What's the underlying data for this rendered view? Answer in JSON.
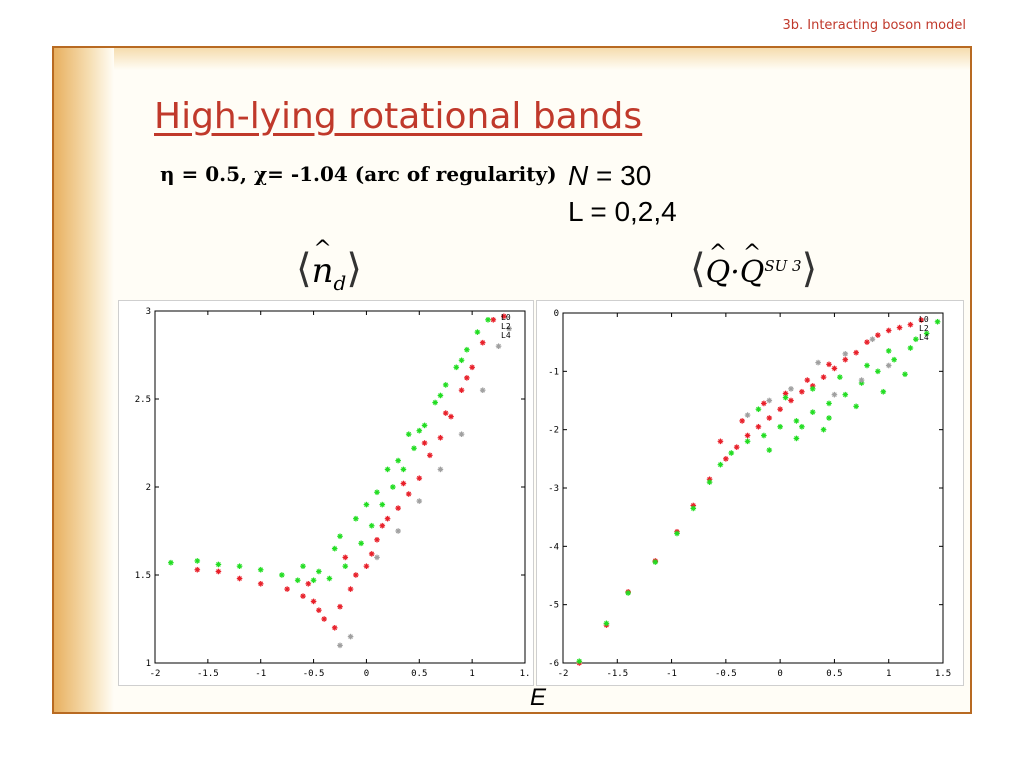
{
  "header": {
    "section": "3b. Interacting boson model"
  },
  "slide": {
    "title": "High-lying rotational bands",
    "params": "η = 0.5, χ= -1.04 (arc of regularity)",
    "n_label": "N",
    "n_value": " = 30",
    "l_line": "L = 0,2,4",
    "left_header": {
      "left_bracket": "⟨",
      "symbol": "n",
      "subscript": "d",
      "right_bracket": "⟩"
    },
    "right_header": {
      "left_bracket": "⟨",
      "symbol1": "Q",
      "dot": "·",
      "symbol2": "Q",
      "superscript": "SU 3",
      "right_bracket": "⟩"
    },
    "xlabel": "E"
  },
  "chart_data": [
    {
      "type": "scatter",
      "name": "nd-vs-E",
      "xlim": [
        -2,
        1.5
      ],
      "ylim": [
        1,
        3
      ],
      "xticks": [
        "-2",
        "-1.5",
        "-1",
        "-0.5",
        "0",
        "0.5",
        "1",
        "1."
      ],
      "yticks": [
        "1",
        "1.5",
        "2",
        "2.5",
        "3"
      ],
      "legend_position": "top-right",
      "legend": [
        "L0",
        "L2",
        "L4"
      ],
      "series_colors": [
        "#e8202a",
        "#22dd22",
        "#a0a0a0"
      ],
      "series": [
        {
          "name": "L0",
          "color": "#e8202a",
          "points": [
            [
              -1.6,
              1.53
            ],
            [
              -1.4,
              1.52
            ],
            [
              -1.2,
              1.48
            ],
            [
              -1.0,
              1.45
            ],
            [
              -0.75,
              1.42
            ],
            [
              -0.6,
              1.38
            ],
            [
              -0.5,
              1.35
            ],
            [
              -0.45,
              1.3
            ],
            [
              -0.4,
              1.25
            ],
            [
              -0.3,
              1.2
            ],
            [
              -0.25,
              1.32
            ],
            [
              -0.15,
              1.42
            ],
            [
              -0.1,
              1.5
            ],
            [
              0.0,
              1.55
            ],
            [
              0.05,
              1.62
            ],
            [
              0.1,
              1.7
            ],
            [
              0.2,
              1.82
            ],
            [
              0.3,
              1.88
            ],
            [
              0.4,
              1.96
            ],
            [
              0.5,
              2.05
            ],
            [
              0.6,
              2.18
            ],
            [
              0.7,
              2.28
            ],
            [
              0.8,
              2.4
            ],
            [
              0.9,
              2.55
            ],
            [
              1.0,
              2.68
            ],
            [
              1.1,
              2.82
            ],
            [
              1.2,
              2.95
            ],
            [
              1.3,
              2.97
            ],
            [
              -0.55,
              1.45
            ],
            [
              -0.2,
              1.6
            ],
            [
              0.15,
              1.78
            ],
            [
              0.35,
              2.02
            ],
            [
              0.55,
              2.25
            ],
            [
              0.75,
              2.42
            ],
            [
              0.95,
              2.62
            ]
          ]
        },
        {
          "name": "L2",
          "color": "#22dd22",
          "points": [
            [
              -1.85,
              1.57
            ],
            [
              -1.6,
              1.58
            ],
            [
              -1.4,
              1.56
            ],
            [
              -1.2,
              1.55
            ],
            [
              -1.0,
              1.53
            ],
            [
              -0.8,
              1.5
            ],
            [
              -0.65,
              1.47
            ],
            [
              -0.5,
              1.47
            ],
            [
              -0.35,
              1.48
            ],
            [
              -0.2,
              1.55
            ],
            [
              -0.05,
              1.68
            ],
            [
              0.05,
              1.78
            ],
            [
              0.15,
              1.9
            ],
            [
              0.25,
              2.0
            ],
            [
              0.35,
              2.1
            ],
            [
              0.45,
              2.22
            ],
            [
              0.55,
              2.35
            ],
            [
              0.65,
              2.48
            ],
            [
              0.75,
              2.58
            ],
            [
              0.85,
              2.68
            ],
            [
              0.95,
              2.78
            ],
            [
              1.05,
              2.88
            ],
            [
              1.15,
              2.95
            ],
            [
              -0.3,
              1.65
            ],
            [
              -0.1,
              1.82
            ],
            [
              0.1,
              1.97
            ],
            [
              0.3,
              2.15
            ],
            [
              0.5,
              2.32
            ],
            [
              0.7,
              2.52
            ],
            [
              0.9,
              2.72
            ],
            [
              -0.6,
              1.55
            ],
            [
              -0.45,
              1.52
            ],
            [
              -0.25,
              1.72
            ],
            [
              0.0,
              1.9
            ],
            [
              0.2,
              2.1
            ],
            [
              0.4,
              2.3
            ]
          ]
        },
        {
          "name": "L4",
          "color": "#a0a0a0",
          "points": [
            [
              -0.25,
              1.1
            ],
            [
              -0.15,
              1.15
            ],
            [
              0.1,
              1.6
            ],
            [
              0.3,
              1.75
            ],
            [
              0.5,
              1.92
            ],
            [
              0.7,
              2.1
            ],
            [
              0.9,
              2.3
            ],
            [
              1.1,
              2.55
            ],
            [
              1.25,
              2.8
            ],
            [
              1.35,
              2.9
            ]
          ]
        }
      ]
    },
    {
      "type": "scatter",
      "name": "QQ-vs-E",
      "xlim": [
        -2,
        1.5
      ],
      "ylim": [
        -6,
        0
      ],
      "xticks": [
        "-2",
        "-1.5",
        "-1",
        "-0.5",
        "0",
        "0.5",
        "1",
        "1.5"
      ],
      "yticks": [
        "-6",
        "-5",
        "-4",
        "-3",
        "-2",
        "-1",
        "0"
      ],
      "legend_position": "top-right",
      "legend": [
        "L0",
        "L2",
        "L4"
      ],
      "series_colors": [
        "#e8202a",
        "#22dd22",
        "#a0a0a0"
      ],
      "series": [
        {
          "name": "L0",
          "color": "#e8202a",
          "points": [
            [
              -1.85,
              -6.0
            ],
            [
              -1.6,
              -5.35
            ],
            [
              -1.4,
              -4.78
            ],
            [
              -1.15,
              -4.25
            ],
            [
              -0.95,
              -3.75
            ],
            [
              -0.8,
              -3.3
            ],
            [
              -0.65,
              -2.85
            ],
            [
              -0.5,
              -2.5
            ],
            [
              -0.4,
              -2.3
            ],
            [
              -0.3,
              -2.1
            ],
            [
              -0.2,
              -1.95
            ],
            [
              -0.1,
              -1.8
            ],
            [
              0.0,
              -1.65
            ],
            [
              0.1,
              -1.5
            ],
            [
              0.2,
              -1.35
            ],
            [
              0.3,
              -1.25
            ],
            [
              0.4,
              -1.1
            ],
            [
              0.5,
              -0.95
            ],
            [
              0.6,
              -0.8
            ],
            [
              0.7,
              -0.68
            ],
            [
              0.8,
              -0.5
            ],
            [
              0.9,
              -0.38
            ],
            [
              1.0,
              -0.3
            ],
            [
              1.1,
              -0.25
            ],
            [
              1.2,
              -0.2
            ],
            [
              1.3,
              -0.12
            ],
            [
              -0.55,
              -2.2
            ],
            [
              -0.35,
              -1.85
            ],
            [
              -0.15,
              -1.55
            ],
            [
              0.05,
              -1.38
            ],
            [
              0.25,
              -1.15
            ],
            [
              0.45,
              -0.88
            ]
          ]
        },
        {
          "name": "L2",
          "color": "#22dd22",
          "points": [
            [
              -1.85,
              -5.97
            ],
            [
              -1.6,
              -5.32
            ],
            [
              -1.4,
              -4.8
            ],
            [
              -1.15,
              -4.27
            ],
            [
              -0.95,
              -3.78
            ],
            [
              -0.8,
              -3.35
            ],
            [
              -0.65,
              -2.9
            ],
            [
              -0.55,
              -2.6
            ],
            [
              -0.45,
              -2.4
            ],
            [
              -0.3,
              -2.2
            ],
            [
              -0.15,
              -2.1
            ],
            [
              0.0,
              -1.95
            ],
            [
              0.15,
              -1.85
            ],
            [
              0.3,
              -1.7
            ],
            [
              0.45,
              -1.55
            ],
            [
              0.6,
              -1.4
            ],
            [
              0.75,
              -1.2
            ],
            [
              0.9,
              -1.0
            ],
            [
              1.05,
              -0.8
            ],
            [
              1.2,
              -0.6
            ],
            [
              1.35,
              -0.35
            ],
            [
              1.45,
              -0.15
            ],
            [
              -0.2,
              -1.65
            ],
            [
              0.05,
              -1.45
            ],
            [
              0.3,
              -1.3
            ],
            [
              0.55,
              -1.1
            ],
            [
              0.8,
              -0.9
            ],
            [
              1.0,
              -0.65
            ],
            [
              1.25,
              -0.45
            ],
            [
              0.2,
              -1.95
            ],
            [
              0.45,
              -1.8
            ],
            [
              0.7,
              -1.6
            ],
            [
              0.95,
              -1.35
            ],
            [
              1.15,
              -1.05
            ],
            [
              -0.1,
              -2.35
            ],
            [
              0.15,
              -2.15
            ],
            [
              0.4,
              -2.0
            ]
          ]
        },
        {
          "name": "L4",
          "color": "#a0a0a0",
          "points": [
            [
              -0.1,
              -1.5
            ],
            [
              0.1,
              -1.3
            ],
            [
              0.35,
              -0.85
            ],
            [
              0.6,
              -0.7
            ],
            [
              0.85,
              -0.45
            ],
            [
              -0.3,
              -1.75
            ],
            [
              0.5,
              -1.4
            ],
            [
              0.75,
              -1.15
            ],
            [
              1.0,
              -0.9
            ]
          ]
        }
      ]
    }
  ]
}
